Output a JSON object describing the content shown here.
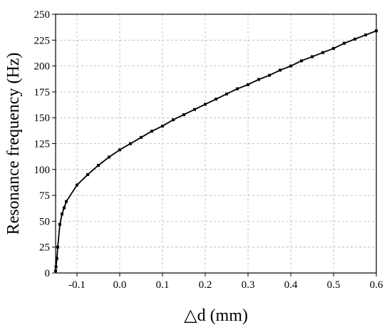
{
  "chart_data": {
    "type": "line",
    "title": "",
    "xlabel": "△d (mm)",
    "ylabel": "Resonance frequency (Hz)",
    "xlim": [
      -0.15,
      0.6
    ],
    "ylim": [
      0,
      250
    ],
    "xticks": [
      -0.1,
      0.0,
      0.1,
      0.2,
      0.3,
      0.4,
      0.5,
      0.6
    ],
    "xtick_labels": [
      "-0.1",
      "0.0",
      "0.1",
      "0.2",
      "0.3",
      "0.4",
      "0.5",
      "0.6"
    ],
    "yticks": [
      0,
      25,
      50,
      75,
      100,
      125,
      150,
      175,
      200,
      225,
      250
    ],
    "ytick_labels": [
      "0",
      "25",
      "50",
      "75",
      "100",
      "125",
      "150",
      "175",
      "200",
      "225",
      "250"
    ],
    "grid": true,
    "legend": "none",
    "line_color": "#000000",
    "series": [
      {
        "marker": "square",
        "x": [
          -0.15,
          -0.149,
          -0.147,
          -0.145,
          -0.14,
          -0.135,
          -0.13,
          -0.125,
          -0.1,
          -0.075,
          -0.05,
          -0.025,
          0.0,
          0.025,
          0.05,
          0.075,
          0.1,
          0.125,
          0.15,
          0.175,
          0.2,
          0.225,
          0.25,
          0.275,
          0.3,
          0.325,
          0.35,
          0.375,
          0.4,
          0.425,
          0.45,
          0.475,
          0.5,
          0.525,
          0.55,
          0.575,
          0.6
        ],
        "y": [
          2,
          6,
          14,
          25,
          47,
          57,
          63,
          69,
          85,
          95,
          104,
          112,
          119,
          125,
          131,
          137,
          142,
          148,
          153,
          158,
          163,
          168,
          173,
          178,
          182,
          187,
          191,
          196,
          200,
          205,
          209,
          213,
          217,
          222,
          226,
          230,
          234
        ]
      }
    ]
  }
}
